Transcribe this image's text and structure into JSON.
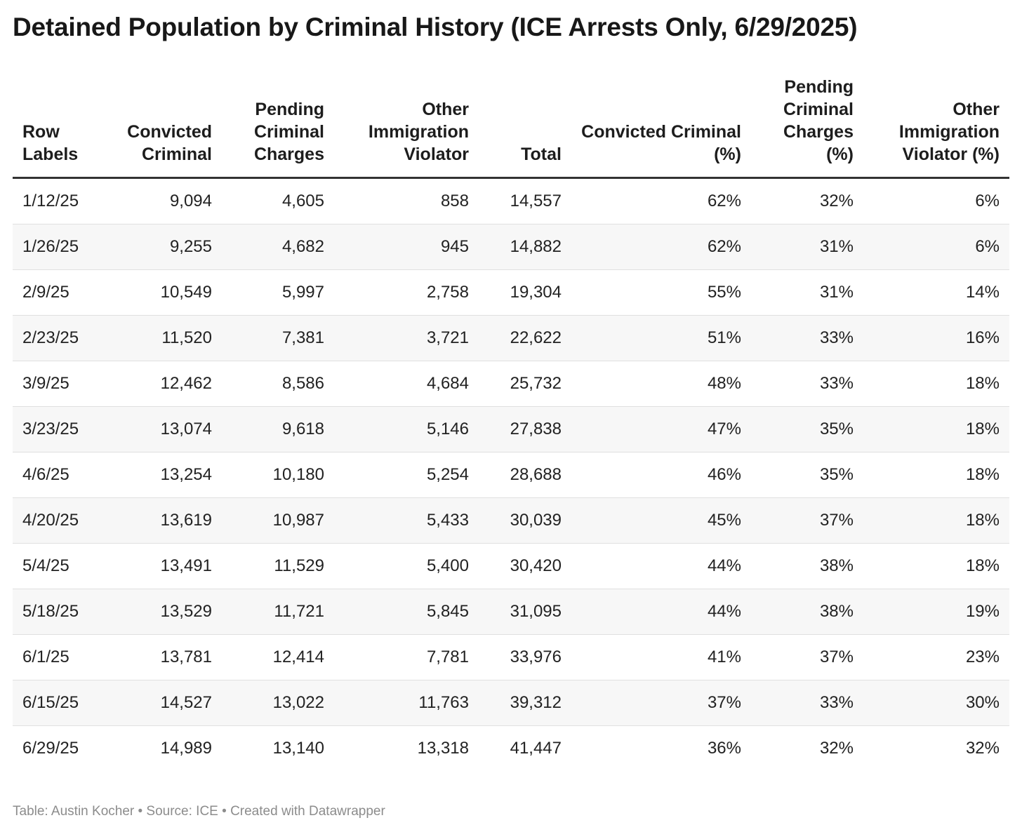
{
  "chart_data": {
    "type": "table",
    "title": "Detained Population by Criminal History (ICE Arrests Only, 6/29/2025)",
    "columns": [
      "Row Labels",
      "Convicted Criminal",
      "Pending Criminal Charges",
      "Other Immigration Violator",
      "Total",
      "Convicted Criminal (%)",
      "Pending Criminal Charges (%)",
      "Other Immigration Violator (%)"
    ],
    "rows": [
      [
        "1/12/25",
        "9,094",
        "4,605",
        "858",
        "14,557",
        "62%",
        "32%",
        "6%"
      ],
      [
        "1/26/25",
        "9,255",
        "4,682",
        "945",
        "14,882",
        "62%",
        "31%",
        "6%"
      ],
      [
        "2/9/25",
        "10,549",
        "5,997",
        "2,758",
        "19,304",
        "55%",
        "31%",
        "14%"
      ],
      [
        "2/23/25",
        "11,520",
        "7,381",
        "3,721",
        "22,622",
        "51%",
        "33%",
        "16%"
      ],
      [
        "3/9/25",
        "12,462",
        "8,586",
        "4,684",
        "25,732",
        "48%",
        "33%",
        "18%"
      ],
      [
        "3/23/25",
        "13,074",
        "9,618",
        "5,146",
        "27,838",
        "47%",
        "35%",
        "18%"
      ],
      [
        "4/6/25",
        "13,254",
        "10,180",
        "5,254",
        "28,688",
        "46%",
        "35%",
        "18%"
      ],
      [
        "4/20/25",
        "13,619",
        "10,987",
        "5,433",
        "30,039",
        "45%",
        "37%",
        "18%"
      ],
      [
        "5/4/25",
        "13,491",
        "11,529",
        "5,400",
        "30,420",
        "44%",
        "38%",
        "18%"
      ],
      [
        "5/18/25",
        "13,529",
        "11,721",
        "5,845",
        "31,095",
        "44%",
        "38%",
        "19%"
      ],
      [
        "6/1/25",
        "13,781",
        "12,414",
        "7,781",
        "33,976",
        "41%",
        "37%",
        "23%"
      ],
      [
        "6/15/25",
        "14,527",
        "13,022",
        "11,763",
        "39,312",
        "37%",
        "33%",
        "30%"
      ],
      [
        "6/29/25",
        "14,989",
        "13,140",
        "13,318",
        "41,447",
        "36%",
        "32%",
        "32%"
      ]
    ],
    "footer": "Table: Austin Kocher • Source: ICE • Created with Datawrapper"
  },
  "colors": {
    "text": "#1d1d1d",
    "header_rule": "#333333",
    "row_alt": "#f7f7f7",
    "footer_text": "#8c8c8c"
  }
}
